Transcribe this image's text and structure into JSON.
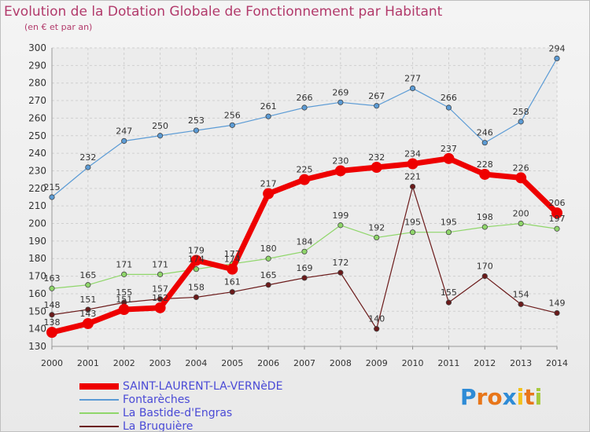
{
  "header": {
    "title": "Evolution de la Dotation Globale de Fonctionnement par Habitant",
    "subtitle": "(en € et par an)"
  },
  "logo": {
    "text": "Proxiti",
    "letters": [
      "P",
      "r",
      "o",
      "x",
      "i",
      "t",
      "i"
    ],
    "colors": [
      "#2e8bd6",
      "#e8761a",
      "#e8761a",
      "#2e8bd6",
      "#f2c21b",
      "#e8761a",
      "#a6c93b"
    ]
  },
  "chart_data": {
    "type": "line",
    "x": [
      2000,
      2001,
      2002,
      2003,
      2004,
      2005,
      2006,
      2007,
      2008,
      2009,
      2010,
      2011,
      2012,
      2013,
      2014
    ],
    "ylim": [
      130,
      300
    ],
    "yticks": [
      130,
      140,
      150,
      160,
      170,
      180,
      190,
      200,
      210,
      220,
      230,
      240,
      250,
      260,
      270,
      280,
      290,
      300
    ],
    "grid": true,
    "legend_position": "bottom-left",
    "series": [
      {
        "name": "SAINT-LAURENT-LA-VERNèDE",
        "color": "#ee0000",
        "width": 7,
        "marker": 7,
        "values": [
          138,
          143,
          151,
          152,
          179,
          174,
          217,
          225,
          230,
          232,
          234,
          237,
          228,
          226,
          206
        ],
        "labels": [
          "138",
          "143",
          "151",
          "152",
          "179",
          "174",
          "217",
          "225",
          "230",
          "232",
          "234",
          "237",
          "228",
          "226",
          "206"
        ]
      },
      {
        "name": "Fontarèches",
        "color": "#5b9bd5",
        "width": 1.2,
        "marker": 3.2,
        "values": [
          215,
          232,
          247,
          250,
          253,
          256,
          261,
          266,
          269,
          267,
          277,
          266,
          246,
          258,
          294
        ],
        "labels": [
          "215",
          "232",
          "247",
          "250",
          "253",
          "256",
          "261",
          "266",
          "269",
          "267",
          "277",
          "266",
          "246",
          "258",
          "294"
        ]
      },
      {
        "name": "La Bastide-d'Engras",
        "color": "#8fd66a",
        "width": 1.2,
        "marker": 3.2,
        "values": [
          163,
          165,
          171,
          171,
          174,
          177,
          180,
          184,
          199,
          192,
          195,
          195,
          198,
          200,
          197
        ],
        "labels": [
          "163",
          "165",
          "171",
          "171",
          "174",
          "177",
          "180",
          "184",
          "199",
          "192",
          "195",
          "195",
          "198",
          "200",
          "197"
        ]
      },
      {
        "name": "La Bruguière",
        "color": "#6b1a1a",
        "width": 1.2,
        "marker": 3.2,
        "values": [
          148,
          151,
          155,
          157,
          158,
          161,
          165,
          169,
          172,
          140,
          221,
          155,
          170,
          154,
          149
        ],
        "labels": [
          "148",
          "151",
          "155",
          "157",
          "158",
          "161",
          "165",
          "169",
          "172",
          "140",
          "221",
          "155",
          "170",
          "154",
          "149"
        ]
      }
    ]
  }
}
